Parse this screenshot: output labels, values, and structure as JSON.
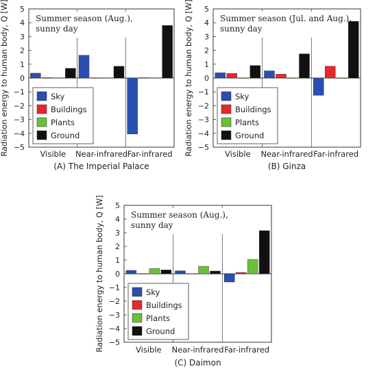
{
  "colors": {
    "Sky": "#2a4fb0",
    "Buildings": "#e8272a",
    "Plants": "#6cbf3a",
    "Ground": "#111111"
  },
  "chart_data": [
    {
      "type": "bar",
      "caption": "(A) The Imperial Palace",
      "note_lines": [
        "Summer season (Aug.),",
        "sunny day"
      ],
      "ylabel": "Radiation energy to human body, Q [W]",
      "ylim": [
        -5,
        5
      ],
      "yticks": [
        "5",
        "4",
        "3",
        "2",
        "1",
        "0",
        "−1",
        "−2",
        "−3",
        "−4",
        "−5"
      ],
      "categories": [
        "Visible",
        "Near-infrared",
        "Far-infrared"
      ],
      "legend": {
        "position": "lower-left"
      },
      "series": [
        {
          "name": "Sky",
          "values": [
            0.35,
            1.65,
            -4.05
          ]
        },
        {
          "name": "Buildings",
          "values": [
            0.03,
            0.02,
            0.03
          ]
        },
        {
          "name": "Plants",
          "values": [
            0.02,
            0.02,
            0.02
          ]
        },
        {
          "name": "Ground",
          "values": [
            0.7,
            0.85,
            3.8
          ]
        }
      ]
    },
    {
      "type": "bar",
      "caption": "(B) Ginza",
      "note_lines": [
        "Summer season (Jul. and Aug.),",
        "sunny day"
      ],
      "ylabel": "Radiation energy to human body, Q [W]",
      "ylim": [
        -5,
        5
      ],
      "yticks": [
        "5",
        "4",
        "3",
        "2",
        "1",
        "0",
        "−1",
        "−2",
        "−3",
        "−4",
        "−5"
      ],
      "categories": [
        "Visible",
        "Near-infrared",
        "Far-infrared"
      ],
      "legend": {
        "position": "lower-left"
      },
      "series": [
        {
          "name": "Sky",
          "values": [
            0.38,
            0.52,
            -1.25
          ]
        },
        {
          "name": "Buildings",
          "values": [
            0.33,
            0.28,
            0.85
          ]
        },
        {
          "name": "Plants",
          "values": [
            0.01,
            0.01,
            0.01
          ]
        },
        {
          "name": "Ground",
          "values": [
            0.9,
            1.75,
            4.1
          ]
        }
      ]
    },
    {
      "type": "bar",
      "caption": "(C) Daimon",
      "note_lines": [
        "Summer season (Aug.),",
        "sunny day"
      ],
      "ylabel": "Radiation energy to human body, Q [W]",
      "ylim": [
        -5,
        5
      ],
      "yticks": [
        "5",
        "4",
        "3",
        "2",
        "1",
        "0",
        "−1",
        "−2",
        "−3",
        "−4",
        "−5"
      ],
      "categories": [
        "Visible",
        "Near-infrared",
        "Far-infrared"
      ],
      "legend": {
        "position": "lower-left"
      },
      "series": [
        {
          "name": "Sky",
          "values": [
            0.25,
            0.22,
            -0.6
          ]
        },
        {
          "name": "Buildings",
          "values": [
            0.02,
            0.02,
            0.1
          ]
        },
        {
          "name": "Plants",
          "values": [
            0.38,
            0.55,
            1.05
          ]
        },
        {
          "name": "Ground",
          "values": [
            0.28,
            0.2,
            3.15
          ]
        }
      ]
    }
  ]
}
